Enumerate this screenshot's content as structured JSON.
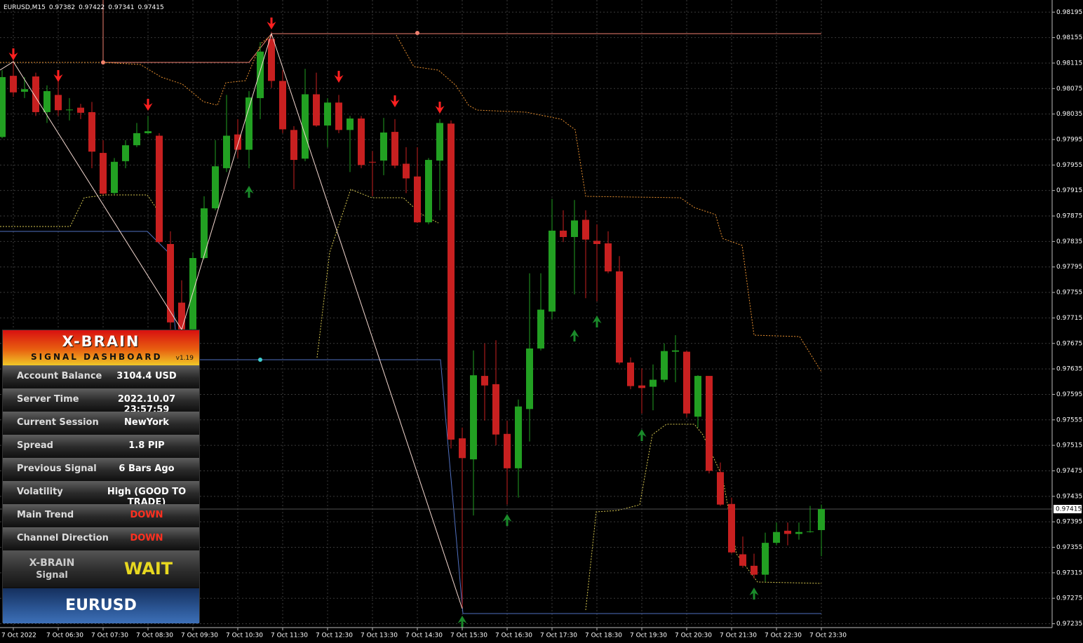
{
  "chart_data": {
    "type": "candlestick",
    "title": "EURUSD,M15",
    "categories": [
      null,
      "7 Oct 2022",
      null,
      null,
      null,
      "7 Oct 06:30",
      null,
      null,
      null,
      "7 Oct 07:30",
      null,
      null,
      null,
      "7 Oct 08:30",
      null,
      null,
      null,
      "7 Oct 09:30",
      null,
      null,
      null,
      "7 Oct 10:30",
      null,
      null,
      null,
      "7 Oct 11:30",
      null,
      null,
      null,
      "7 Oct 12:30",
      null,
      null,
      null,
      "7 Oct 13:30",
      null,
      null,
      null,
      "7 Oct 14:30",
      null,
      null,
      null,
      "7 Oct 15:30",
      null,
      null,
      null,
      "7 Oct 16:30",
      null,
      null,
      null,
      "7 Oct 17:30",
      null,
      null,
      null,
      "7 Oct 18:30",
      null,
      null,
      null,
      "7 Oct 19:30",
      null,
      null,
      null,
      "7 Oct 20:30",
      null,
      null,
      null,
      "7 Oct 21:30",
      null,
      null,
      null,
      "7 Oct 22:30",
      null,
      null,
      null,
      "7 Oct 23:30"
    ],
    "open": [
      0.97999,
      0.98095,
      0.9807,
      0.98094,
      0.98038,
      0.98065,
      0.98041,
      0.98045,
      0.98038,
      0.97974,
      0.97911,
      0.97961,
      0.97986,
      0.98005,
      0.98001,
      0.97831,
      0.97739,
      0.97697,
      0.97809,
      0.97887,
      0.9795,
      0.98003,
      0.97979,
      0.9806,
      0.98153,
      0.98087,
      0.9801,
      0.97965,
      0.98066,
      0.98017,
      0.98053,
      0.9801,
      0.98028,
      0.9796,
      0.97962,
      0.98007,
      0.97957,
      0.97937,
      0.97865,
      0.97962,
      0.9802,
      0.97526,
      0.97493,
      0.97624,
      0.97611,
      0.97533,
      0.97479,
      0.97572,
      0.97667,
      0.97725,
      0.97852,
      0.97842,
      0.97869,
      0.97836,
      0.97832,
      0.97788,
      0.97645,
      0.97609,
      0.97607,
      0.97618,
      0.97662,
      0.97662,
      0.9756,
      0.97624,
      0.97473,
      0.97423,
      0.97344,
      0.97326,
      0.97312,
      0.97362,
      0.97381,
      0.97376,
      0.97379,
      0.97382
    ],
    "high": [
      0.98104,
      0.98126,
      0.98093,
      0.981,
      0.9808,
      0.98093,
      0.9806,
      0.98051,
      0.98054,
      0.97994,
      0.97966,
      0.97994,
      0.98021,
      0.98032,
      0.98005,
      0.97851,
      0.97774,
      0.97818,
      0.97906,
      0.97994,
      0.98065,
      0.98027,
      0.98071,
      0.98148,
      0.98164,
      0.98104,
      0.98016,
      0.98106,
      0.981,
      0.9806,
      0.98065,
      0.98032,
      0.98032,
      0.97977,
      0.98029,
      0.98027,
      0.97983,
      0.97983,
      0.97966,
      0.98027,
      0.98025,
      0.97543,
      0.97664,
      0.97675,
      0.9768,
      0.97554,
      0.97587,
      0.97785,
      0.97785,
      0.97902,
      0.97884,
      0.979,
      0.97884,
      0.97862,
      0.97851,
      0.97812,
      0.97653,
      0.97636,
      0.97642,
      0.97675,
      0.97688,
      0.97664,
      0.97625,
      0.9762,
      0.97488,
      0.97433,
      0.97372,
      0.97345,
      0.97378,
      0.97394,
      0.97394,
      0.97394,
      0.9742,
      0.97422
    ],
    "low": [
      0.97997,
      0.98062,
      0.9806,
      0.98032,
      0.98021,
      0.98032,
      0.98025,
      0.98027,
      0.9795,
      0.97908,
      0.97908,
      0.9795,
      0.97983,
      0.98003,
      0.97831,
      0.97697,
      0.97691,
      0.97691,
      0.97807,
      0.97884,
      0.97944,
      0.97966,
      0.9795,
      0.98027,
      0.98076,
      0.98005,
      0.97917,
      0.97961,
      0.98015,
      0.97983,
      0.98005,
      0.97944,
      0.9795,
      0.97906,
      0.97939,
      0.9795,
      0.97911,
      0.97864,
      0.97862,
      0.97884,
      0.9751,
      0.97259,
      0.97405,
      0.97554,
      0.97515,
      0.97422,
      0.97433,
      0.97521,
      0.97664,
      0.97713,
      0.97834,
      0.97752,
      0.97746,
      0.97741,
      0.97785,
      0.97642,
      0.97603,
      0.97565,
      0.9757,
      0.97614,
      0.97614,
      0.97559,
      0.97543,
      0.97471,
      0.9742,
      0.97345,
      0.97323,
      0.97306,
      0.97301,
      0.97358,
      0.97358,
      0.97367,
      0.97378,
      0.97341
    ],
    "close": [
      0.98093,
      0.98069,
      0.98074,
      0.98038,
      0.98071,
      0.98041,
      0.98042,
      0.98037,
      0.97976,
      0.9791,
      0.9796,
      0.97986,
      0.98005,
      0.98008,
      0.97834,
      0.97708,
      0.97697,
      0.97809,
      0.97887,
      0.97953,
      0.98001,
      0.97979,
      0.98061,
      0.98133,
      0.98087,
      0.98011,
      0.97963,
      0.98066,
      0.98017,
      0.98053,
      0.9801,
      0.98028,
      0.97955,
      0.97959,
      0.98006,
      0.97954,
      0.97934,
      0.97865,
      0.97963,
      0.98021,
      0.97524,
      0.97495,
      0.97625,
      0.97609,
      0.97532,
      0.97479,
      0.97576,
      0.97667,
      0.97728,
      0.97852,
      0.97842,
      0.97868,
      0.97838,
      0.97831,
      0.97788,
      0.97645,
      0.97608,
      0.97605,
      0.97618,
      0.97663,
      0.97664,
      0.97565,
      0.97624,
      0.97475,
      0.97422,
      0.97347,
      0.97326,
      0.97312,
      0.97362,
      0.97379,
      0.97376,
      0.97379,
      0.9738,
      0.97415
    ],
    "up_color": "#22a022",
    "down_color": "#c82020",
    "ylim": [
      0.97229,
      0.98214
    ],
    "yticks": [
      0.98195,
      0.98155,
      0.98115,
      0.98075,
      0.98035,
      0.97995,
      0.97955,
      0.97915,
      0.97875,
      0.97835,
      0.97795,
      0.97755,
      0.97715,
      0.97675,
      0.97635,
      0.97595,
      0.97555,
      0.97515,
      0.97475,
      0.97435,
      0.97395,
      0.97355,
      0.97315,
      0.97275,
      0.97235
    ],
    "grid": true
  },
  "dashboard": {
    "title": "X-BRAIN",
    "subtitle": "SIGNAL DASHBOARD",
    "version": "v1.19",
    "rows": [
      {
        "label": "Account Balance",
        "value": "3104.4 USD",
        "color": "#ffffff"
      },
      {
        "label": "Server Time",
        "value": "2022.10.07 23:57:59",
        "color": "#ffffff"
      },
      {
        "label": "Current Session",
        "value": "NewYork",
        "color": "#ffffff"
      },
      {
        "label": "Spread",
        "value": "1.8 PIP",
        "color": "#ffffff"
      },
      {
        "label": "Previous Signal",
        "value": "6 Bars Ago",
        "color": "#ffffff"
      },
      {
        "label": "Volatility",
        "value": "High (GOOD TO TRADE)",
        "color": "#ffffff"
      },
      {
        "label": "Main Trend",
        "value": "DOWN",
        "color": "#ff3020"
      },
      {
        "label": "Channel Direction",
        "value": "DOWN",
        "color": "#ff3020"
      }
    ],
    "signal_label": [
      "X-BRAIN",
      "Signal"
    ],
    "signal": "WAIT",
    "symbol": "EURUSD"
  }
}
